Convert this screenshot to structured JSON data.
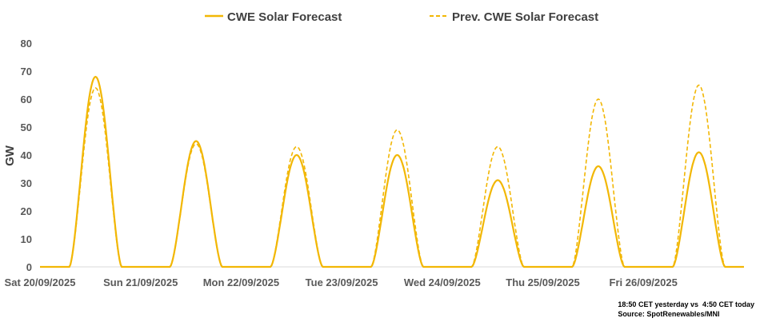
{
  "chart_data": {
    "type": "line",
    "title": "",
    "ylabel": "GW",
    "xlabel": "",
    "ylim": [
      0,
      80
    ],
    "yticks": [
      "0",
      "10",
      "20",
      "30",
      "40",
      "50",
      "60",
      "70",
      "80"
    ],
    "x_tick_labels": [
      "Sat 20/09/2025",
      "Sun 21/09/2025",
      "Mon 22/09/2025",
      "Tue 23/09/2025",
      "Wed 24/09/2025",
      "Thu 25/09/2025",
      "Fri 26/09/2025"
    ],
    "daylight_hours": {
      "start": 7.0,
      "end": 19.5
    },
    "series": [
      {
        "name": "CWE Solar Forecast",
        "style": "solid",
        "color": "#f2b705",
        "daily_peaks_gw": [
          68,
          45,
          40,
          40,
          31,
          36,
          41
        ]
      },
      {
        "name": "Prev. CWE Solar Forecast",
        "style": "dashed",
        "color": "#f2b705",
        "daily_peaks_gw": [
          64,
          44,
          43,
          49,
          43,
          60,
          65
        ]
      }
    ],
    "legend_position": "top"
  },
  "note": {
    "line1": "18:50 CET yesterday vs  4:50 CET today",
    "line2": "Source: SpotRenewables/MNI"
  }
}
